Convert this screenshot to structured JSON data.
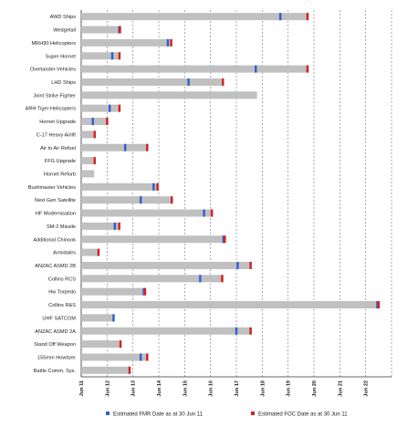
{
  "chart_data": {
    "type": "bar",
    "title": "",
    "xlabel": "",
    "ylabel": "",
    "x_axis": {
      "start": 2011,
      "end": 2023,
      "tick_labels": [
        "Jun 11",
        "Jun 12",
        "Jun 13",
        "Jun 14",
        "Jun 15",
        "Jun 16",
        "Jun 17",
        "Jun 18",
        "Jun 19",
        "Jun 20",
        "Jun 21",
        "Jun 22"
      ]
    },
    "grid": true,
    "legend_position": "bottom",
    "legend": [
      {
        "name": "Estimated FMR Date as at 30 Jun 11",
        "color": "#2f5fd0"
      },
      {
        "name": "Estimated FOC Date as at 30 Jun 11",
        "color": "#d42020"
      }
    ],
    "bar_color": "#c0c0c0",
    "programs": [
      {
        "name": "AWD Ships",
        "end": 2019.8,
        "fmr": 2018.7,
        "foc": 2019.75
      },
      {
        "name": "Wedgetail",
        "end": 2012.5,
        "fmr": 2012.47,
        "foc": 2012.5
      },
      {
        "name": "MRH90 Helicopters",
        "end": 2014.5,
        "fmr": 2014.35,
        "foc": 2014.48
      },
      {
        "name": "Super Hornet",
        "end": 2012.5,
        "fmr": 2012.2,
        "foc": 2012.48
      },
      {
        "name": "Overlander Vehicles",
        "end": 2019.8,
        "fmr": 2017.75,
        "foc": 2019.75
      },
      {
        "name": "LHD Ships",
        "end": 2016.5,
        "fmr": 2015.15,
        "foc": 2016.48
      },
      {
        "name": "Joint Strike Fighter",
        "end": 2017.8
      },
      {
        "name": "ARH Tiger Helicopters",
        "end": 2012.5,
        "fmr": 2012.1,
        "foc": 2012.48
      },
      {
        "name": "Hornet Upgrade",
        "end": 2012.05,
        "fmr": 2011.45,
        "foc": 2012.0
      },
      {
        "name": "C-17 Heavy Airlift",
        "end": 2011.55,
        "foc": 2011.52
      },
      {
        "name": "Air to Air Refuel",
        "end": 2013.6,
        "fmr": 2012.7,
        "foc": 2013.55
      },
      {
        "name": "FFG Upgrade",
        "end": 2011.55,
        "foc": 2011.52
      },
      {
        "name": "Hornet Refurb",
        "end": 2011.5
      },
      {
        "name": "Bushmaster Vehicles",
        "end": 2014.0,
        "fmr": 2013.8,
        "foc": 2013.95
      },
      {
        "name": "Next Gen Satellite",
        "end": 2014.55,
        "fmr": 2013.3,
        "foc": 2014.5
      },
      {
        "name": "HF Modernisation",
        "end": 2016.1,
        "fmr": 2015.75,
        "foc": 2016.05
      },
      {
        "name": "SM-2 Missile",
        "end": 2012.5,
        "fmr": 2012.3,
        "foc": 2012.47
      },
      {
        "name": "Additional Chinook",
        "end": 2016.6,
        "fmr": 2016.5,
        "foc": 2016.55
      },
      {
        "name": "Armidales",
        "end": 2011.7,
        "foc": 2011.67
      },
      {
        "name": "ANZAC ASMD 2B",
        "end": 2017.6,
        "fmr": 2017.05,
        "foc": 2017.55
      },
      {
        "name": "Collins RCS",
        "end": 2016.5,
        "fmr": 2015.6,
        "foc": 2016.45
      },
      {
        "name": "Hw Torpedo",
        "end": 2013.5,
        "fmr": 2013.42,
        "foc": 2013.47
      },
      {
        "name": "Collins R&S",
        "end": 2022.55,
        "fmr": 2022.45,
        "foc": 2022.5
      },
      {
        "name": "UHF SATCOM",
        "end": 2012.3,
        "fmr": 2012.25
      },
      {
        "name": "ANZAC ASMD 2A",
        "end": 2017.6,
        "fmr": 2017.0,
        "foc": 2017.55
      },
      {
        "name": "Stand Off Weapon",
        "end": 2012.55,
        "foc": 2012.52
      },
      {
        "name": "155mm Howitzer",
        "end": 2013.6,
        "fmr": 2013.3,
        "foc": 2013.55
      },
      {
        "name": "Battle Comm. Sys.",
        "end": 2012.9,
        "foc": 2012.87
      }
    ]
  }
}
